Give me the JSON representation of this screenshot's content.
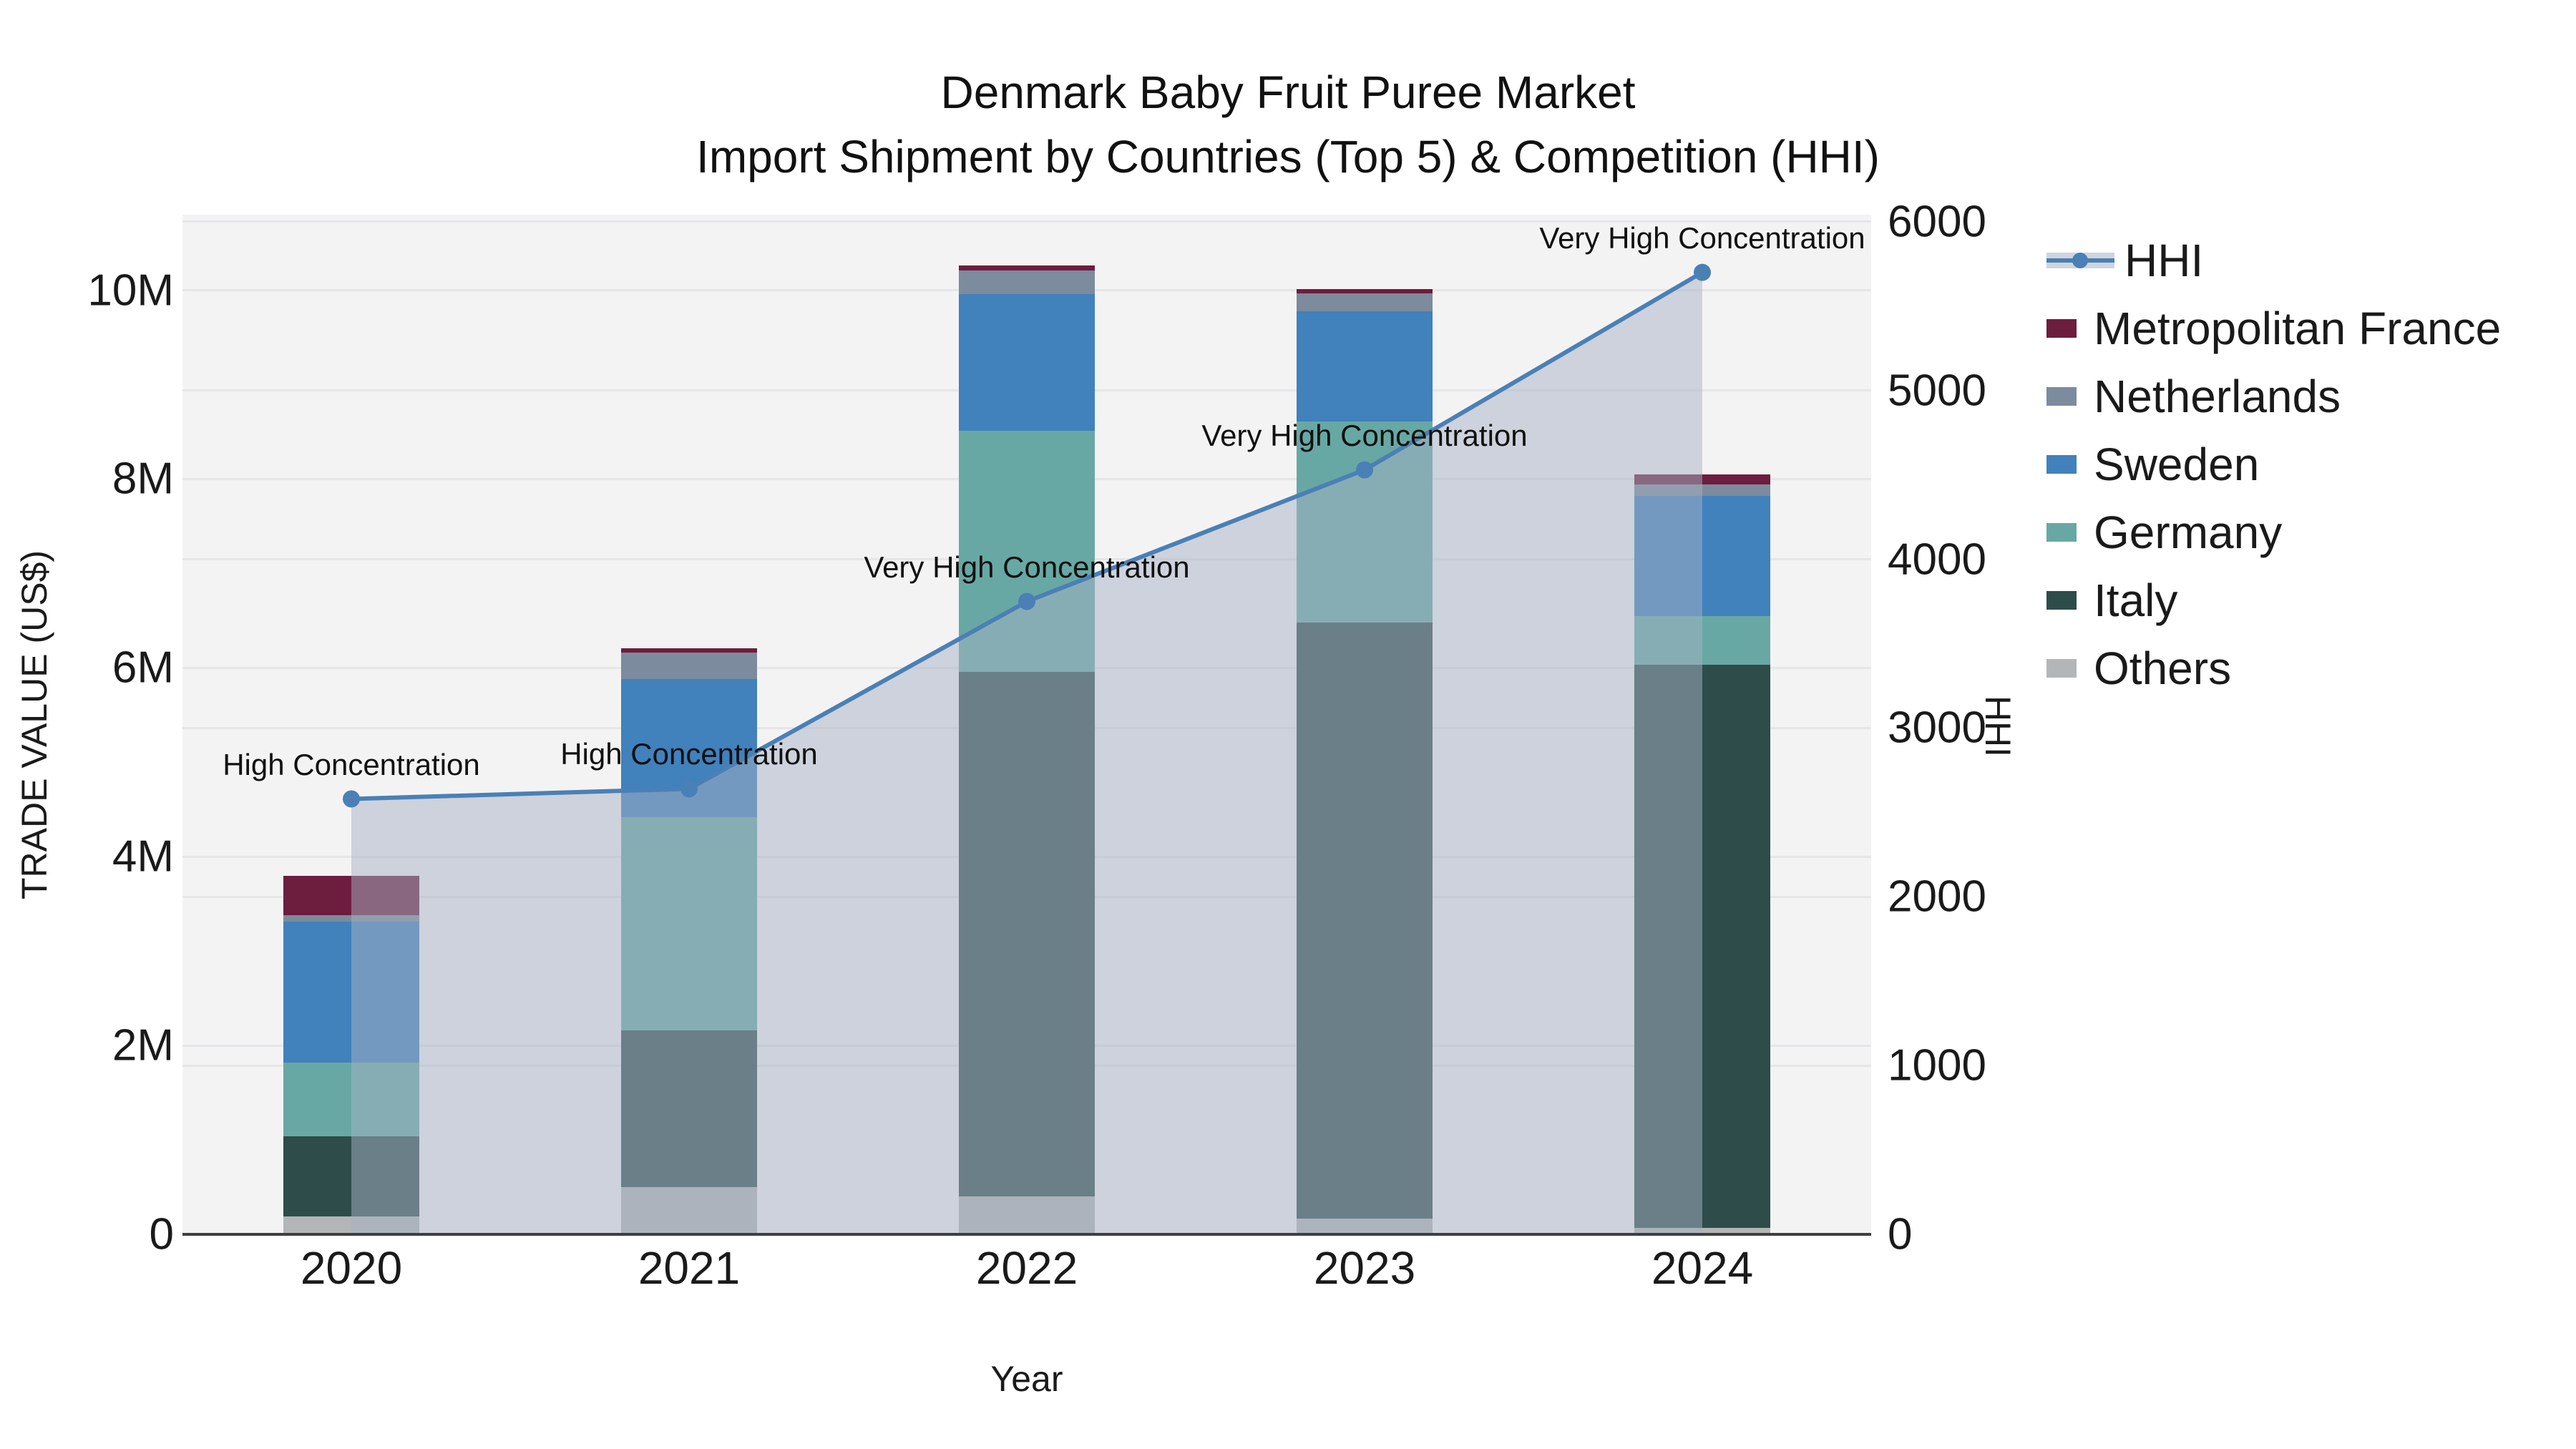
{
  "figure": {
    "title_line1": "Denmark Baby Fruit Puree Market",
    "title_line2": "Import Shipment by Countries (Top 5) & Competition (HHI)"
  },
  "chart_data": {
    "type": "combo",
    "subtypes": [
      "stacked-bar",
      "line",
      "area"
    ],
    "title": "Denmark Baby Fruit Puree Market Import Shipment by Countries (Top 5) & Competition (HHI)",
    "xlabel": "Year",
    "categories": [
      "2020",
      "2021",
      "2022",
      "2023",
      "2024"
    ],
    "left_axis": {
      "label": "TRADE VALUE (US$)",
      "min": 0,
      "max": 10800000,
      "ticks": [
        {
          "value": 0,
          "label": "0"
        },
        {
          "value": 2000000,
          "label": "2M"
        },
        {
          "value": 4000000,
          "label": "4M"
        },
        {
          "value": 6000000,
          "label": "6M"
        },
        {
          "value": 8000000,
          "label": "8M"
        },
        {
          "value": 10000000,
          "label": "10M"
        }
      ]
    },
    "right_axis": {
      "label": "HHI",
      "min": 0,
      "max": 6042,
      "ticks": [
        {
          "value": 0,
          "label": "0"
        },
        {
          "value": 1000,
          "label": "1000"
        },
        {
          "value": 2000,
          "label": "2000"
        },
        {
          "value": 3000,
          "label": "3000"
        },
        {
          "value": 4000,
          "label": "4000"
        },
        {
          "value": 5000,
          "label": "5000"
        },
        {
          "value": 6000,
          "label": "6000"
        }
      ]
    },
    "bar_series_bottom_to_top": [
      {
        "name": "Others",
        "color": "#b3b5b7",
        "values": [
          190000,
          500000,
          400000,
          170000,
          70000
        ]
      },
      {
        "name": "Italy",
        "color": "#2e4c4a",
        "values": [
          850000,
          1660000,
          5560000,
          6310000,
          5960000
        ]
      },
      {
        "name": "Germany",
        "color": "#68a8a4",
        "values": [
          780000,
          2260000,
          2550000,
          2130000,
          520000
        ]
      },
      {
        "name": "Sweden",
        "color": "#4181bc",
        "values": [
          1490000,
          1460000,
          1450000,
          1170000,
          1270000
        ]
      },
      {
        "name": "Netherlands",
        "color": "#7c8b9d",
        "values": [
          70000,
          280000,
          250000,
          190000,
          120000
        ]
      },
      {
        "name": "Metropolitan France",
        "color": "#6d1d3d",
        "values": [
          420000,
          50000,
          50000,
          40000,
          110000
        ]
      }
    ],
    "bar_totals": [
      3800000,
      6210000,
      10260000,
      10010000,
      8050000
    ],
    "line_series": {
      "name": "HHI",
      "axis": "right",
      "color": "#4a80b5",
      "area_color": "rgba(165,177,195,0.5)",
      "values": [
        2580,
        2640,
        3750,
        4530,
        5700
      ]
    },
    "annotations": [
      {
        "year": "2020",
        "text": "High Concentration"
      },
      {
        "year": "2021",
        "text": "High Concentration"
      },
      {
        "year": "2022",
        "text": "Very High Concentration"
      },
      {
        "year": "2023",
        "text": "Very High Concentration"
      },
      {
        "year": "2024",
        "text": "Very High Concentration"
      }
    ],
    "legend": [
      {
        "name": "HHI",
        "glyph": "line-area-marker"
      },
      {
        "name": "Metropolitan France",
        "glyph": "patch",
        "color": "#6d1d3d"
      },
      {
        "name": "Netherlands",
        "glyph": "patch",
        "color": "#7c8b9d"
      },
      {
        "name": "Sweden",
        "glyph": "patch",
        "color": "#4181bc"
      },
      {
        "name": "Germany",
        "glyph": "patch",
        "color": "#68a8a4"
      },
      {
        "name": "Italy",
        "glyph": "patch",
        "color": "#2e4c4a"
      },
      {
        "name": "Others",
        "glyph": "patch",
        "color": "#b3b5b7"
      }
    ],
    "layout_hints": {
      "plot_background": "#f4f3f4",
      "gridline_color": "#e6e6e8",
      "axis_line_color": "#3f3f3f",
      "legend_position": "right",
      "grid": true
    }
  }
}
